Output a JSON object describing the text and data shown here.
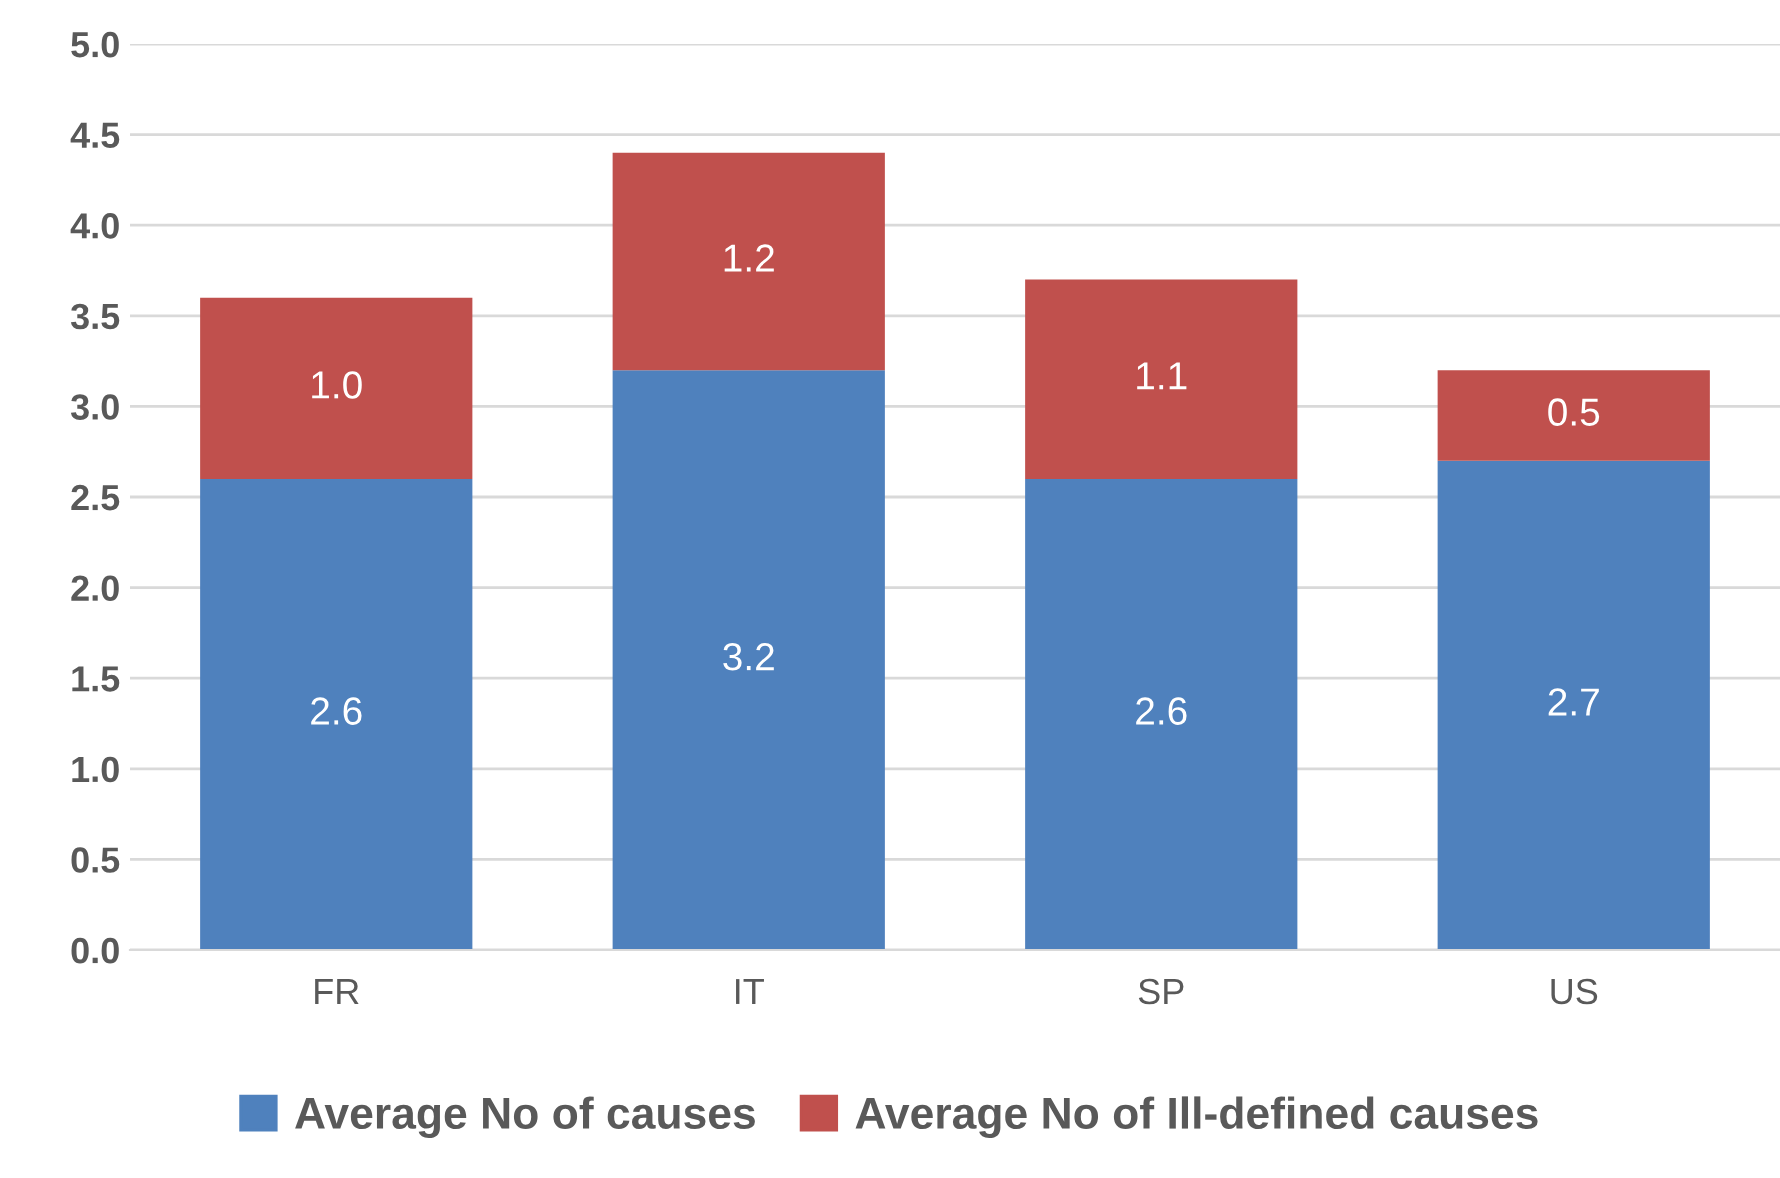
{
  "chart_data": {
    "type": "bar",
    "stacked": true,
    "categories": [
      "FR",
      "IT",
      "SP",
      "US"
    ],
    "series": [
      {
        "name": "Average No of causes",
        "color": "#4f81bd",
        "values": [
          2.6,
          3.2,
          2.6,
          2.7
        ],
        "value_labels": [
          "2.6",
          "3.2",
          "2.6",
          "2.7"
        ]
      },
      {
        "name": "Average No of Ill-defined causes",
        "color": "#c0504d",
        "values": [
          1.0,
          1.2,
          1.1,
          0.5
        ],
        "value_labels": [
          "1.0",
          "1.2",
          "1.1",
          "0.5"
        ]
      }
    ],
    "ylim": [
      0,
      5
    ],
    "yticks": [
      {
        "value": 0,
        "label": "0.0"
      },
      {
        "value": 0.5,
        "label": "0.5"
      },
      {
        "value": 1,
        "label": "1.0"
      },
      {
        "value": 1.5,
        "label": "1.5"
      },
      {
        "value": 2,
        "label": "2.0"
      },
      {
        "value": 2.5,
        "label": "2.5"
      },
      {
        "value": 3,
        "label": "3.0"
      },
      {
        "value": 3.5,
        "label": "3.5"
      },
      {
        "value": 4,
        "label": "4.0"
      },
      {
        "value": 4.5,
        "label": "4.5"
      },
      {
        "value": 5,
        "label": "5.0"
      }
    ],
    "grid": "y",
    "legend": "bottom"
  }
}
